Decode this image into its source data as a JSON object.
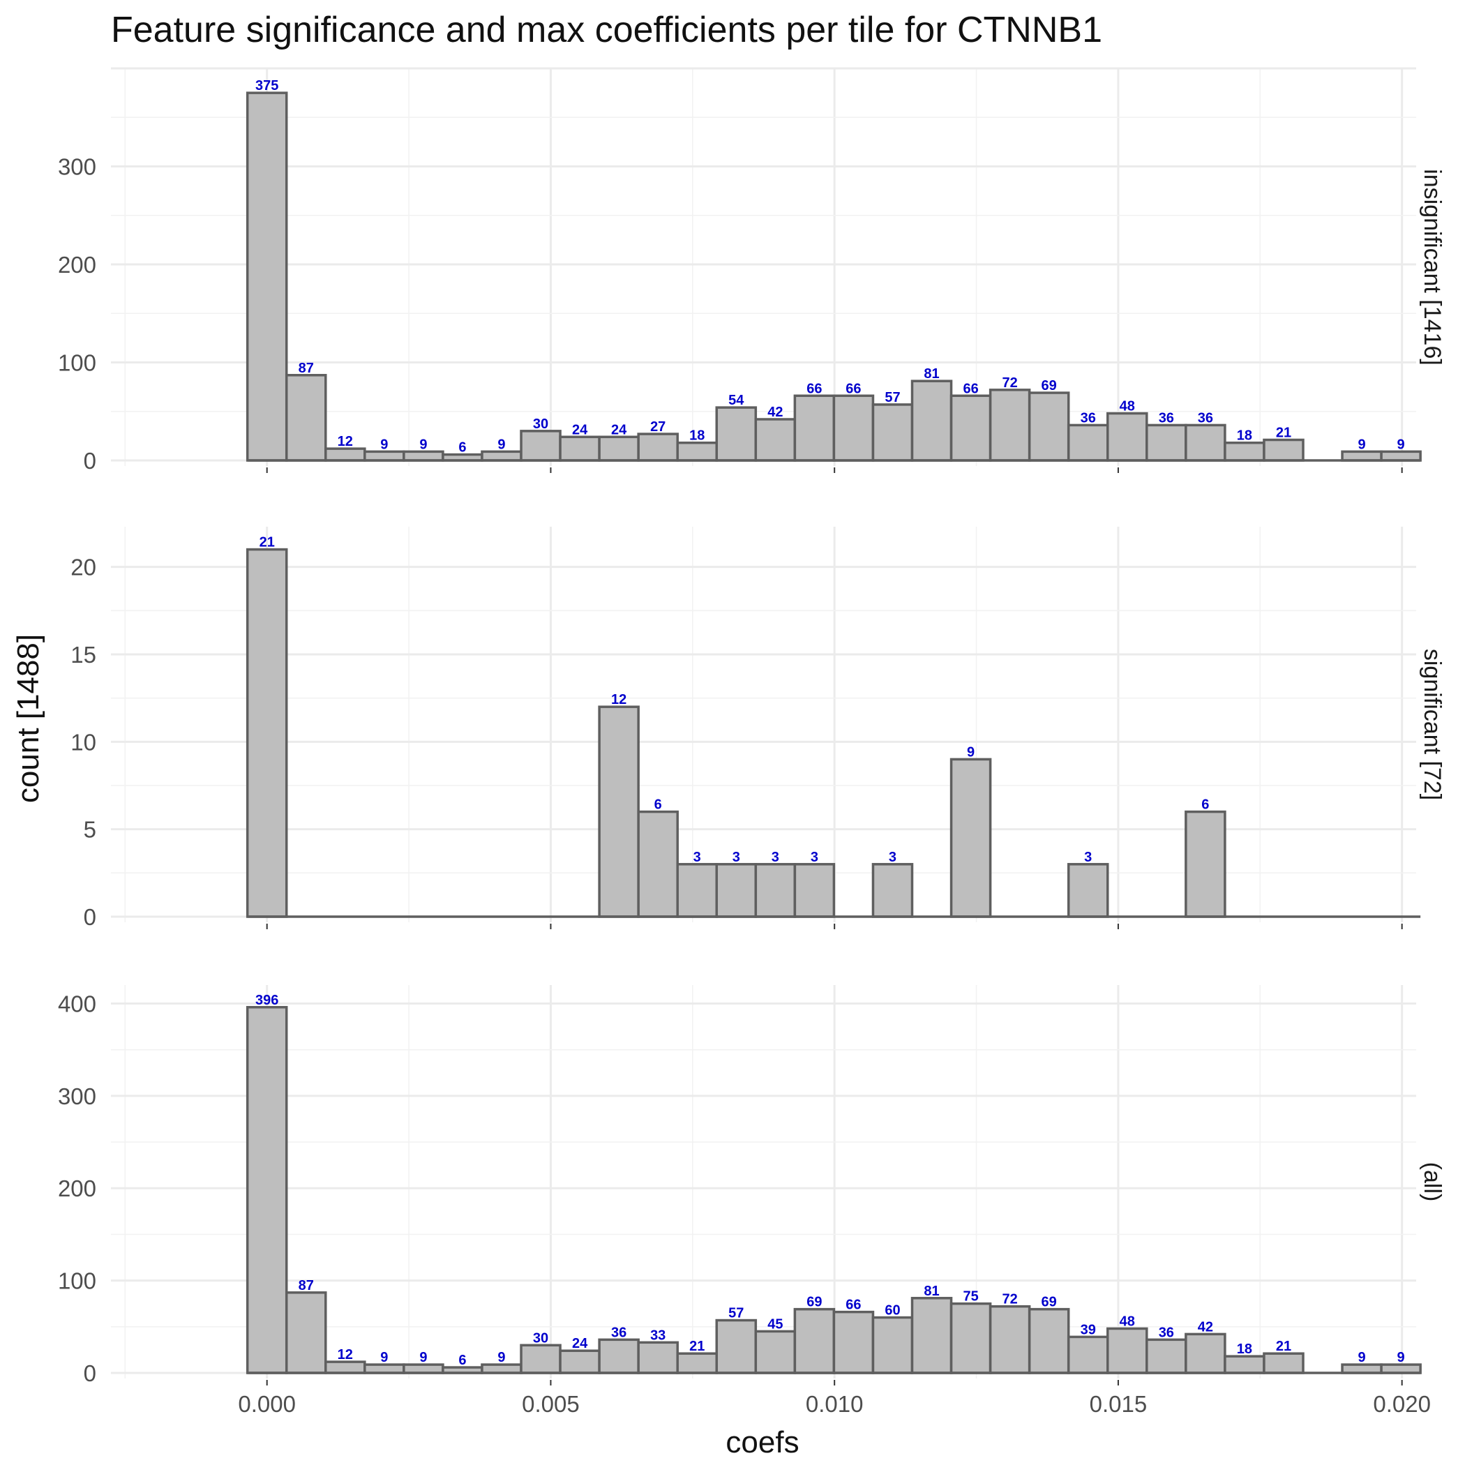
{
  "chart_data": {
    "type": "bar",
    "title": "Feature significance and max coefficients per tile for CTNNB1",
    "xlabel": "coefs",
    "ylabel": "count [1488]",
    "xlim": [
      -0.00275,
      0.02025
    ],
    "x_ticks": [
      "0.000",
      "0.005",
      "0.010",
      "0.015",
      "0.020"
    ],
    "x_tick_values": [
      0.0,
      0.005,
      0.01,
      0.015,
      0.02
    ],
    "bin_width": 0.000689,
    "x_bin_centers": [
      0.0,
      0.000689,
      0.001378,
      0.002067,
      0.002756,
      0.003445,
      0.004134,
      0.004823,
      0.005512,
      0.006201,
      0.00689,
      0.007579,
      0.008268,
      0.008957,
      0.009646,
      0.010335,
      0.011024,
      0.011713,
      0.012402,
      0.013091,
      0.01378,
      0.014469,
      0.015158,
      0.015847,
      0.016536,
      0.017225,
      0.017914,
      0.018603,
      0.019292,
      0.019981
    ],
    "grid": true,
    "panels": [
      {
        "strip_label": "insignificant [1416]",
        "ylim": [
          0,
          400
        ],
        "y_ticks": [
          "0",
          "100",
          "200",
          "300"
        ],
        "y_tick_values": [
          0,
          100,
          200,
          300
        ],
        "values": [
          375,
          87,
          12,
          9,
          9,
          6,
          9,
          30,
          24,
          24,
          27,
          18,
          54,
          42,
          66,
          66,
          57,
          81,
          66,
          72,
          69,
          36,
          48,
          36,
          36,
          18,
          21,
          0,
          9,
          9
        ]
      },
      {
        "strip_label": "significant [72]",
        "ylim": [
          0,
          22.3
        ],
        "y_ticks": [
          "0",
          "5",
          "10",
          "15",
          "20"
        ],
        "y_tick_values": [
          0,
          5,
          10,
          15,
          20
        ],
        "values": [
          21,
          0,
          0,
          0,
          0,
          0,
          0,
          0,
          0,
          12,
          6,
          3,
          3,
          3,
          3,
          0,
          3,
          0,
          9,
          0,
          0,
          3,
          0,
          0,
          6,
          0,
          0,
          0,
          0,
          0
        ]
      },
      {
        "strip_label": "(all)",
        "ylim": [
          0,
          420
        ],
        "y_ticks": [
          "0",
          "100",
          "200",
          "300",
          "400"
        ],
        "y_tick_values": [
          0,
          100,
          200,
          300,
          400
        ],
        "values": [
          396,
          87,
          12,
          9,
          9,
          6,
          9,
          30,
          24,
          36,
          33,
          21,
          57,
          45,
          69,
          66,
          60,
          81,
          75,
          72,
          69,
          39,
          48,
          36,
          42,
          18,
          21,
          0,
          9,
          9
        ]
      }
    ]
  }
}
